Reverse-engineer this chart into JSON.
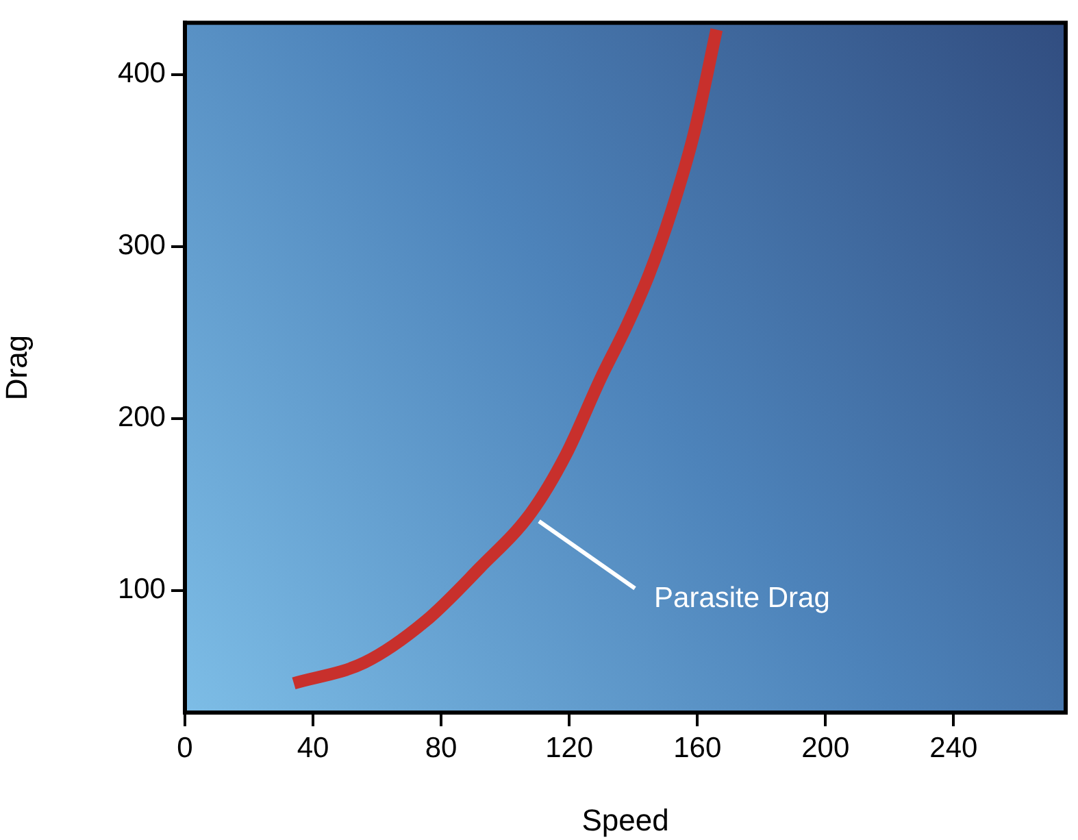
{
  "chart_data": {
    "type": "line",
    "xlabel": "Speed",
    "ylabel": "Drag",
    "xlim": [
      0,
      275
    ],
    "xticks": [
      0,
      40,
      80,
      120,
      160,
      200,
      240
    ],
    "ylim": [
      29,
      430
    ],
    "yticks": [
      100,
      200,
      300,
      400
    ],
    "legend": false,
    "marker": "none",
    "line_style": "solid",
    "annotations": [
      {
        "text": "Parasite Drag",
        "x": 108,
        "y": 145
      }
    ],
    "series": [
      {
        "color": "#c8302c",
        "x": [
          34,
          56,
          75,
          92,
          108,
          119,
          130,
          138,
          145,
          152,
          159,
          166
        ],
        "values": [
          46,
          58,
          82,
          113,
          145,
          179,
          224,
          254,
          284,
          321,
          366,
          426
        ]
      }
    ]
  }
}
